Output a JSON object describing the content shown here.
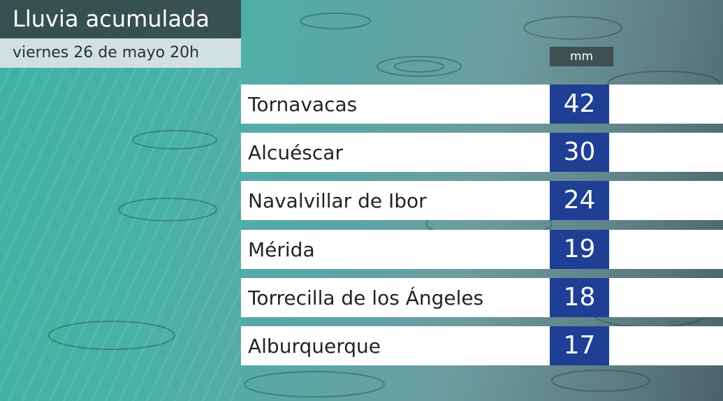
{
  "header": {
    "title": "Lluvia acumulada",
    "subtitle": "viernes 26 de mayo 20h"
  },
  "table": {
    "unit": "mm",
    "rows": [
      [
        "Tornavacas",
        42
      ],
      [
        "Alcuéscar",
        30
      ],
      [
        "Navalvillar de Ibor",
        24
      ],
      [
        "Mérida",
        19
      ],
      [
        "Torrecilla de los Ángeles",
        18
      ],
      [
        "Alburquerque",
        17
      ]
    ]
  }
}
